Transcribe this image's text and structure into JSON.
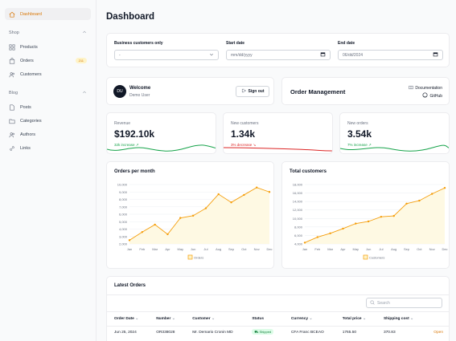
{
  "sidebar": {
    "dashboard": "Dashboard",
    "shop": {
      "label": "Shop",
      "items": [
        {
          "label": "Products"
        },
        {
          "label": "Orders",
          "badge": "211"
        },
        {
          "label": "Customers"
        }
      ]
    },
    "blog": {
      "label": "Blog",
      "items": [
        {
          "label": "Posts"
        },
        {
          "label": "Categories"
        },
        {
          "label": "Authors"
        },
        {
          "label": "Links"
        }
      ]
    }
  },
  "page_title": "Dashboard",
  "filters": {
    "business_label": "Business customers only",
    "business_value": "-",
    "start_label": "Start date",
    "start_value": "mm/dd/yyyy",
    "end_label": "End date",
    "end_value": "06/dd/2024"
  },
  "welcome": {
    "title": "Welcome",
    "user": "Demo User",
    "avatar": "DU",
    "sign_out": "Sign out"
  },
  "order_mgmt": {
    "title": "Order Management",
    "docs": "Documentation",
    "github": "GitHub"
  },
  "stats": [
    {
      "label": "Revenue",
      "value": "$192.10k",
      "trend": "32k increase",
      "color": "#16a34a"
    },
    {
      "label": "New customers",
      "value": "1.34k",
      "trend": "3% decrease",
      "color": "#dc2626"
    },
    {
      "label": "New orders",
      "value": "3.54k",
      "trend": "7% increase",
      "color": "#16a34a"
    }
  ],
  "chart_data": [
    {
      "type": "area",
      "title": "Orders per month",
      "categories": [
        "Jan",
        "Feb",
        "Mar",
        "Apr",
        "May",
        "Jun",
        "Jul",
        "Aug",
        "Sep",
        "Oct",
        "Nov",
        "Dec"
      ],
      "series": [
        {
          "name": "Orders",
          "values": [
            2500,
            3600,
            4600,
            3300,
            5500,
            5800,
            6800,
            8700,
            7600,
            8600,
            9600,
            9000
          ]
        }
      ],
      "ylim": [
        2000,
        10000
      ],
      "yticks": [
        2000,
        3000,
        4000,
        5000,
        6000,
        7000,
        8000,
        9000,
        10000
      ],
      "ytick_labels": [
        "2,000",
        "3,000",
        "4,000",
        "5,000",
        "6,000",
        "7,000",
        "8,000",
        "9,000",
        "10,000"
      ],
      "legend": "bottom",
      "color": "#f59e0b"
    },
    {
      "type": "area",
      "title": "Total customers",
      "categories": [
        "Jan",
        "Feb",
        "Mar",
        "Apr",
        "May",
        "Jun",
        "Jul",
        "Aug",
        "Sep",
        "Oct",
        "Nov",
        "Dec"
      ],
      "series": [
        {
          "name": "Customers",
          "values": [
            4300,
            5600,
            6500,
            7600,
            8800,
            9300,
            10400,
            10600,
            13500,
            14200,
            15800,
            17200
          ]
        }
      ],
      "ylim": [
        4000,
        18000
      ],
      "yticks": [
        4000,
        6000,
        8000,
        10000,
        12000,
        14000,
        16000,
        18000
      ],
      "ytick_labels": [
        "4,000",
        "6,000",
        "8,000",
        "10,000",
        "12,000",
        "14,000",
        "16,000",
        "18,000"
      ],
      "legend": "bottom",
      "color": "#f59e0b"
    }
  ],
  "latest_orders": {
    "title": "Latest Orders",
    "search_placeholder": "Search",
    "columns": [
      "Order Date",
      "Number",
      "Customer",
      "Status",
      "Currency",
      "Total price",
      "Shipping cost"
    ],
    "rows": [
      {
        "date": "Jun 25, 2024",
        "number": "OR338028",
        "customer": "Mr. Demario Cronin MD",
        "status": "Shipped",
        "currency": "CFA Franc BCEAO",
        "total": "1765.50",
        "shipping": "370.83",
        "action": "Open"
      }
    ]
  }
}
